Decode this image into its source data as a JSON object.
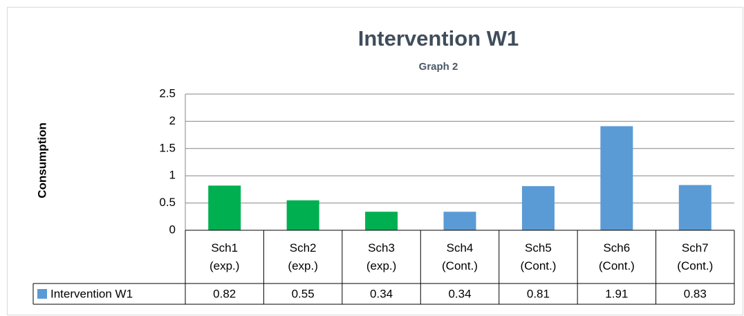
{
  "chart_data": {
    "type": "bar",
    "title": "Intervention W1",
    "subtitle": "Graph 2",
    "y_label": "Consumption",
    "categories": [
      "Sch1 (exp.)",
      "Sch2 (exp.)",
      "Sch3 (exp.)",
      "Sch4 (Cont.)",
      "Sch5 (Cont.)",
      "Sch6 (Cont.)",
      "Sch7 (Cont.)"
    ],
    "series": [
      {
        "name": "Intervention W1",
        "color": "#5b9bd5",
        "values": [
          0.82,
          0.55,
          0.34,
          0.34,
          0.81,
          1.91,
          0.83
        ],
        "point_colors": [
          "#00b050",
          "#00b050",
          "#00b050",
          "#5b9bd5",
          "#5b9bd5",
          "#5b9bd5",
          "#5b9bd5"
        ]
      }
    ],
    "ylim": [
      0,
      2.5
    ],
    "yticks": [
      0,
      0.5,
      1,
      1.5,
      2,
      2.5
    ],
    "grid": true,
    "data_table": true
  }
}
